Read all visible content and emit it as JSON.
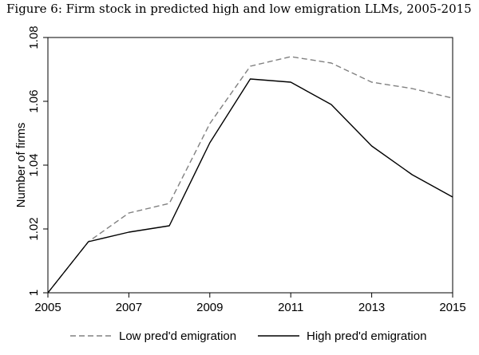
{
  "figure": {
    "caption": "Figure 6: Firm stock in predicted high and low emigration LLMs, 2005-2015"
  },
  "chart_data": {
    "type": "line",
    "title": "",
    "xlabel": "",
    "ylabel": "Number of firms",
    "xlim": [
      2005,
      2015
    ],
    "ylim": [
      1.0,
      1.08
    ],
    "x_ticks": [
      "2005",
      "2007",
      "2009",
      "2011",
      "2013",
      "2015"
    ],
    "y_ticks": [
      "1",
      "1.02",
      "1.04",
      "1.06",
      "1.08"
    ],
    "grid": false,
    "legend_position": "bottom",
    "x": [
      2005,
      2006,
      2007,
      2008,
      2009,
      2010,
      2011,
      2012,
      2013,
      2014,
      2015
    ],
    "series": [
      {
        "name": "Low pred'd emigration",
        "style": "dashed",
        "color": "#808080",
        "values": [
          1.0,
          1.016,
          1.025,
          1.028,
          1.053,
          1.071,
          1.074,
          1.072,
          1.066,
          1.064,
          1.061
        ]
      },
      {
        "name": "High pred'd emigration",
        "style": "solid",
        "color": "#000000",
        "values": [
          1.0,
          1.016,
          1.019,
          1.021,
          1.047,
          1.067,
          1.066,
          1.059,
          1.046,
          1.037,
          1.03
        ]
      }
    ]
  }
}
